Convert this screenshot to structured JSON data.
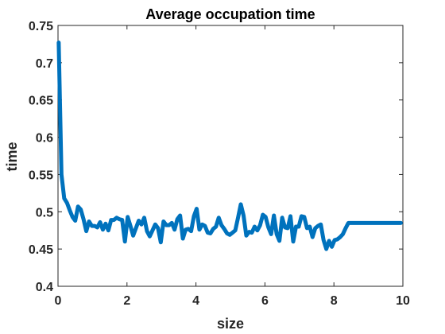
{
  "chart_data": {
    "type": "line",
    "title": "Average occupation time",
    "xlabel": "size",
    "ylabel": "time",
    "xlim": [
      0,
      10
    ],
    "ylim": [
      0.4,
      0.75
    ],
    "xticks": [
      0,
      2,
      4,
      6,
      8,
      10
    ],
    "xtick_labels": [
      "0",
      "2",
      "4",
      "6",
      "8",
      "10"
    ],
    "yticks": [
      0.4,
      0.45,
      0.5,
      0.55,
      0.6,
      0.65,
      0.7,
      0.75
    ],
    "ytick_labels": [
      "0.4",
      "0.45",
      "0.5",
      "0.55",
      "0.6",
      "0.65",
      "0.7",
      "0.75"
    ],
    "grid": false,
    "series": [
      {
        "color": "#0072BD",
        "x": [
          0.02,
          0.1,
          0.18,
          0.26,
          0.34,
          0.42,
          0.5,
          0.58,
          0.66,
          0.74,
          0.82,
          0.9,
          0.98,
          1.06,
          1.14,
          1.22,
          1.3,
          1.38,
          1.46,
          1.54,
          1.62,
          1.7,
          1.78,
          1.86,
          1.94,
          2.02,
          2.1,
          2.18,
          2.26,
          2.34,
          2.42,
          2.5,
          2.58,
          2.66,
          2.74,
          2.82,
          2.9,
          2.98,
          3.06,
          3.14,
          3.22,
          3.3,
          3.38,
          3.46,
          3.54,
          3.62,
          3.7,
          3.78,
          3.86,
          3.94,
          4.02,
          4.1,
          4.18,
          4.26,
          4.34,
          4.42,
          4.5,
          4.58,
          4.66,
          4.74,
          4.82,
          4.9,
          4.98,
          5.06,
          5.14,
          5.22,
          5.3,
          5.38,
          5.46,
          5.54,
          5.62,
          5.7,
          5.78,
          5.86,
          5.94,
          6.02,
          6.1,
          6.18,
          6.26,
          6.34,
          6.42,
          6.5,
          6.58,
          6.66,
          6.74,
          6.82,
          6.9,
          6.98,
          7.06,
          7.14,
          7.22,
          7.3,
          7.38,
          7.46,
          7.54,
          7.62,
          7.7,
          7.78,
          7.86,
          7.94,
          8.02,
          8.1,
          8.18,
          8.26,
          8.34,
          8.42,
          8.5,
          8.58,
          8.66,
          8.74,
          8.82,
          8.9,
          8.98,
          9.06,
          9.14,
          9.22,
          9.3,
          9.38,
          9.46,
          9.54,
          9.62,
          9.7,
          9.78,
          9.86,
          9.94
        ],
        "y": [
          0.727,
          0.55,
          0.518,
          0.512,
          0.502,
          0.493,
          0.488,
          0.507,
          0.503,
          0.49,
          0.474,
          0.487,
          0.481,
          0.481,
          0.479,
          0.486,
          0.476,
          0.484,
          0.475,
          0.489,
          0.489,
          0.492,
          0.49,
          0.489,
          0.46,
          0.493,
          0.481,
          0.468,
          0.478,
          0.488,
          0.483,
          0.492,
          0.474,
          0.467,
          0.475,
          0.483,
          0.478,
          0.459,
          0.487,
          0.482,
          0.482,
          0.485,
          0.476,
          0.49,
          0.495,
          0.464,
          0.476,
          0.477,
          0.474,
          0.494,
          0.504,
          0.476,
          0.483,
          0.481,
          0.472,
          0.471,
          0.477,
          0.48,
          0.492,
          0.482,
          0.477,
          0.471,
          0.469,
          0.472,
          0.475,
          0.492,
          0.51,
          0.495,
          0.468,
          0.473,
          0.472,
          0.48,
          0.475,
          0.482,
          0.496,
          0.493,
          0.479,
          0.47,
          0.495,
          0.47,
          0.461,
          0.492,
          0.479,
          0.478,
          0.494,
          0.46,
          0.48,
          0.48,
          0.494,
          0.493,
          0.478,
          0.48,
          0.466,
          0.478,
          0.481,
          0.483,
          0.462,
          0.45,
          0.461,
          0.453,
          0.462,
          0.463,
          0.466,
          0.47,
          0.478,
          0.485,
          0.485,
          0.485,
          0.485,
          0.485,
          0.485,
          0.485,
          0.485,
          0.485,
          0.485,
          0.485,
          0.485,
          0.485,
          0.485,
          0.485,
          0.485,
          0.485,
          0.485,
          0.485,
          0.485
        ]
      }
    ]
  }
}
